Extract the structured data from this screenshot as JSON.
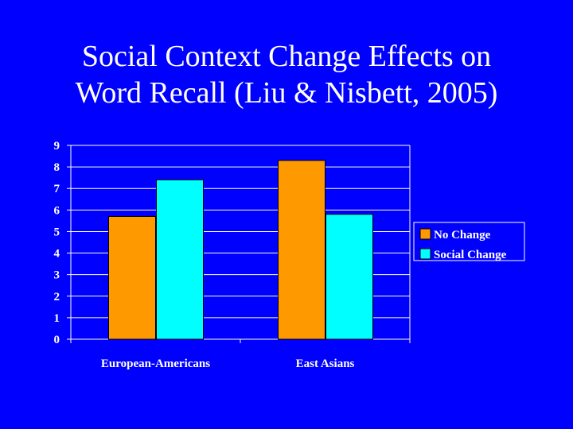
{
  "slide": {
    "title_line1": "Social Context Change Effects on",
    "title_line2": "Word Recall (Liu & Nisbett, 2005)"
  },
  "chart_data": {
    "type": "bar",
    "title": "Social Context Change Effects on Word Recall (Liu & Nisbett, 2005)",
    "categories": [
      "European-Americans",
      "East Asians"
    ],
    "series": [
      {
        "name": "No Change",
        "values": [
          5.7,
          8.3
        ],
        "color": "#ff9900"
      },
      {
        "name": "Social Change",
        "values": [
          7.4,
          5.8
        ],
        "color": "#00ffff"
      }
    ],
    "xlabel": "",
    "ylabel": "",
    "ylim": [
      0,
      9
    ],
    "yticks": [
      "0",
      "1",
      "2",
      "3",
      "4",
      "5",
      "6",
      "7",
      "8",
      "9"
    ],
    "grid": true,
    "legend_position": "right"
  },
  "colors": {
    "background": "#0000ff",
    "text": "#ffffff",
    "grid": "#ffffff"
  }
}
